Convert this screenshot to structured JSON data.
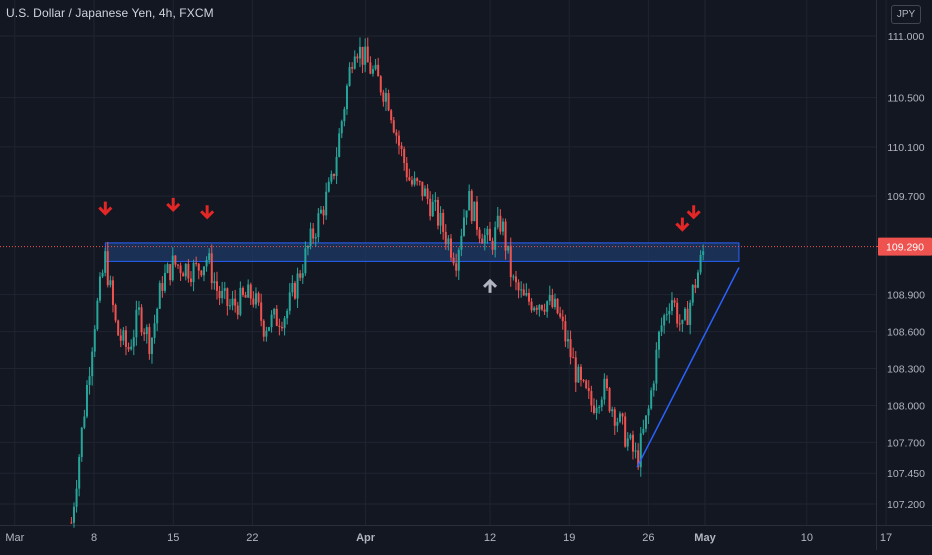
{
  "header": {
    "title": "U.S. Dollar / Japanese Yen, 4h, FXCM",
    "currency": "JPY"
  },
  "colors": {
    "background": "#131722",
    "grid": "#1f2430",
    "up": "#26a69a",
    "down": "#ef5350",
    "zone_fill": "#1e3a66",
    "zone_border": "#2962ff",
    "trendline": "#2962ff",
    "price_line": "#ef5350",
    "arrow_red": "#e32626",
    "arrow_gray": "#b2b5be",
    "axis_text": "#b2b5be"
  },
  "chart_data": {
    "type": "candlestick",
    "symbol": "U.S. Dollar / Japanese Yen",
    "timeframe": "4h",
    "source": "FXCM",
    "grid": true,
    "y_axis": {
      "position": "right",
      "ticks": [
        111.0,
        110.5,
        110.1,
        109.7,
        108.9,
        108.6,
        108.3,
        108.0,
        107.7,
        107.45,
        107.2
      ],
      "tick_labels": [
        "111.000",
        "110.500",
        "110.100",
        "109.700",
        "108.900",
        "108.600",
        "108.300",
        "108.000",
        "107.700",
        "107.450",
        "107.200"
      ],
      "range": [
        107.05,
        111.0
      ]
    },
    "x_axis": {
      "ticks": [
        "Mar",
        "8",
        "15",
        "22",
        "Apr",
        "12",
        "19",
        "26",
        "May",
        "10",
        "17"
      ],
      "tick_bold": [
        false,
        false,
        false,
        false,
        true,
        false,
        false,
        false,
        true,
        false,
        false
      ]
    },
    "last_price": 109.29,
    "last_price_label": "109.290",
    "path": [
      [
        "Mar 6",
        107.05
      ],
      [
        "Mar 8",
        108.65
      ],
      [
        "Mar 9",
        109.2
      ],
      [
        "Mar 10",
        108.6
      ],
      [
        "Mar 11",
        108.45
      ],
      [
        "Mar 12",
        108.75
      ],
      [
        "Mar 13",
        108.5
      ],
      [
        "Mar 14",
        109.0
      ],
      [
        "Mar 15",
        109.15
      ],
      [
        "Mar 17",
        109.1
      ],
      [
        "Mar 18",
        109.2
      ],
      [
        "Mar 19",
        108.9
      ],
      [
        "Mar 20",
        108.8
      ],
      [
        "Mar 22",
        108.9
      ],
      [
        "Mar 23",
        108.65
      ],
      [
        "Mar 25",
        108.75
      ],
      [
        "Mar 27",
        109.3
      ],
      [
        "Mar 29",
        109.8
      ],
      [
        "Mar 31",
        110.95
      ],
      [
        "Apr 1",
        110.8
      ],
      [
        "Apr 2",
        110.65
      ],
      [
        "Apr 3",
        110.5
      ],
      [
        "Apr 4",
        110.1
      ],
      [
        "Apr 5",
        109.8
      ],
      [
        "Apr 6",
        109.75
      ],
      [
        "Apr 7",
        109.6
      ],
      [
        "Apr 9",
        109.2
      ],
      [
        "Apr 10",
        109.7
      ],
      [
        "Apr 11",
        109.45
      ],
      [
        "Apr 12",
        109.3
      ],
      [
        "Apr 13",
        109.5
      ],
      [
        "Apr 14",
        109.0
      ],
      [
        "Apr 15",
        108.85
      ],
      [
        "Apr 17",
        108.85
      ],
      [
        "Apr 18",
        108.75
      ],
      [
        "Apr 20",
        108.15
      ],
      [
        "Apr 21",
        108.0
      ],
      [
        "Apr 22",
        108.15
      ],
      [
        "Apr 23",
        107.95
      ],
      [
        "Apr 24",
        107.75
      ],
      [
        "Apr 25",
        107.55
      ],
      [
        "Apr 26",
        107.95
      ],
      [
        "Apr 27",
        108.6
      ],
      [
        "Apr 28",
        108.9
      ],
      [
        "Apr 29",
        108.6
      ],
      [
        "Apr 30",
        108.95
      ],
      [
        "May 1",
        109.3
      ]
    ],
    "annotations": {
      "resistance_zone": {
        "from": "Mar 9",
        "to": "May 4",
        "low": 109.17,
        "high": 109.32
      },
      "trendline": {
        "start": [
          "Apr 25",
          107.5
        ],
        "end": [
          "May 4",
          109.12
        ]
      },
      "down_arrows": [
        {
          "date": "Mar 9",
          "price": 109.55
        },
        {
          "date": "Mar 15",
          "price": 109.58
        },
        {
          "date": "Mar 18",
          "price": 109.52
        },
        {
          "date": "Apr 29",
          "price": 109.42
        },
        {
          "date": "Apr 30",
          "price": 109.52
        }
      ],
      "up_arrows": [
        {
          "date": "Apr 12",
          "price": 109.02
        }
      ]
    }
  }
}
